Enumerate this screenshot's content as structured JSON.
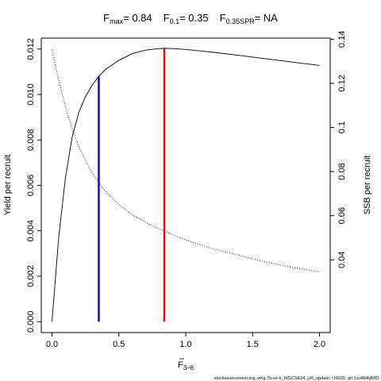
{
  "chart_data": {
    "type": "line",
    "title": {
      "fmax_base": "F",
      "fmax_sub": "max",
      "fmax_value": "= 0.84",
      "f01_base": "F",
      "f01_sub": "0.1",
      "f01_value": "= 0.35",
      "fspr_base": "F",
      "fspr_sub": "0.35SPR",
      "fspr_value": "= NA"
    },
    "xlabel_base": "F",
    "xlabel_sub": "3–6",
    "ylabel": "Yield per recruit",
    "y2label": "SSB per recruit",
    "xlim": [
      -0.08,
      2.08
    ],
    "ylim": [
      -0.00048,
      0.01248
    ],
    "y2lim": [
      0.007,
      0.1405
    ],
    "x_ticks": [
      0,
      0.5,
      1,
      1.5,
      2
    ],
    "x_tick_labels": [
      "0.0",
      "0.5",
      "1.0",
      "1.5",
      "2.0"
    ],
    "y_ticks": [
      0,
      0.002,
      0.004,
      0.006,
      0.008,
      0.01,
      0.012
    ],
    "y_tick_labels": [
      "0.000",
      "0.002",
      "0.004",
      "0.006",
      "0.008",
      "0.010",
      "0.012"
    ],
    "y2_ticks": [
      0.04,
      0.06,
      0.08,
      0.1,
      0.12,
      0.14
    ],
    "y2_tick_labels": [
      "0.04",
      "0.06",
      "0.08",
      "0.1",
      "0.12",
      "0.14"
    ],
    "series": [
      {
        "axis": "left",
        "style": "solid",
        "color": "#000000",
        "x": [
          0,
          0.05,
          0.1,
          0.15,
          0.2,
          0.25,
          0.3,
          0.35,
          0.4,
          0.5,
          0.6,
          0.7,
          0.8,
          0.84,
          0.9,
          1.0,
          1.2,
          1.4,
          1.6,
          1.8,
          2.0
        ],
        "y": [
          0.0,
          0.0037,
          0.0063,
          0.0081,
          0.0092,
          0.0099,
          0.0104,
          0.0108,
          0.0111,
          0.0115,
          0.0118,
          0.01195,
          0.01202,
          0.01203,
          0.01202,
          0.01198,
          0.01186,
          0.01172,
          0.01157,
          0.01142,
          0.01128
        ]
      },
      {
        "axis": "right",
        "style": "dotted",
        "color": "#000000",
        "x": [
          0,
          0.05,
          0.1,
          0.15,
          0.2,
          0.25,
          0.3,
          0.35,
          0.4,
          0.5,
          0.6,
          0.7,
          0.8,
          0.9,
          1.0,
          1.2,
          1.4,
          1.6,
          1.8,
          2.0
        ],
        "y": [
          0.135,
          0.1215,
          0.1095,
          0.0995,
          0.0915,
          0.085,
          0.0795,
          0.075,
          0.071,
          0.065,
          0.0605,
          0.057,
          0.054,
          0.0515,
          0.049,
          0.045,
          0.042,
          0.039,
          0.0365,
          0.0345
        ]
      }
    ],
    "reference_lines": [
      {
        "x": 0.35,
        "y_top": 0.0108,
        "color": "#0000ff"
      },
      {
        "x": 0.84,
        "y_top": 0.01203,
        "color": "#ff0000"
      }
    ],
    "grid": false,
    "legend": "none",
    "footer": "stockassessment.org, whg.7b-ce-k_WGCSE24_UK_update, r19165, git 1cc484b806f"
  }
}
